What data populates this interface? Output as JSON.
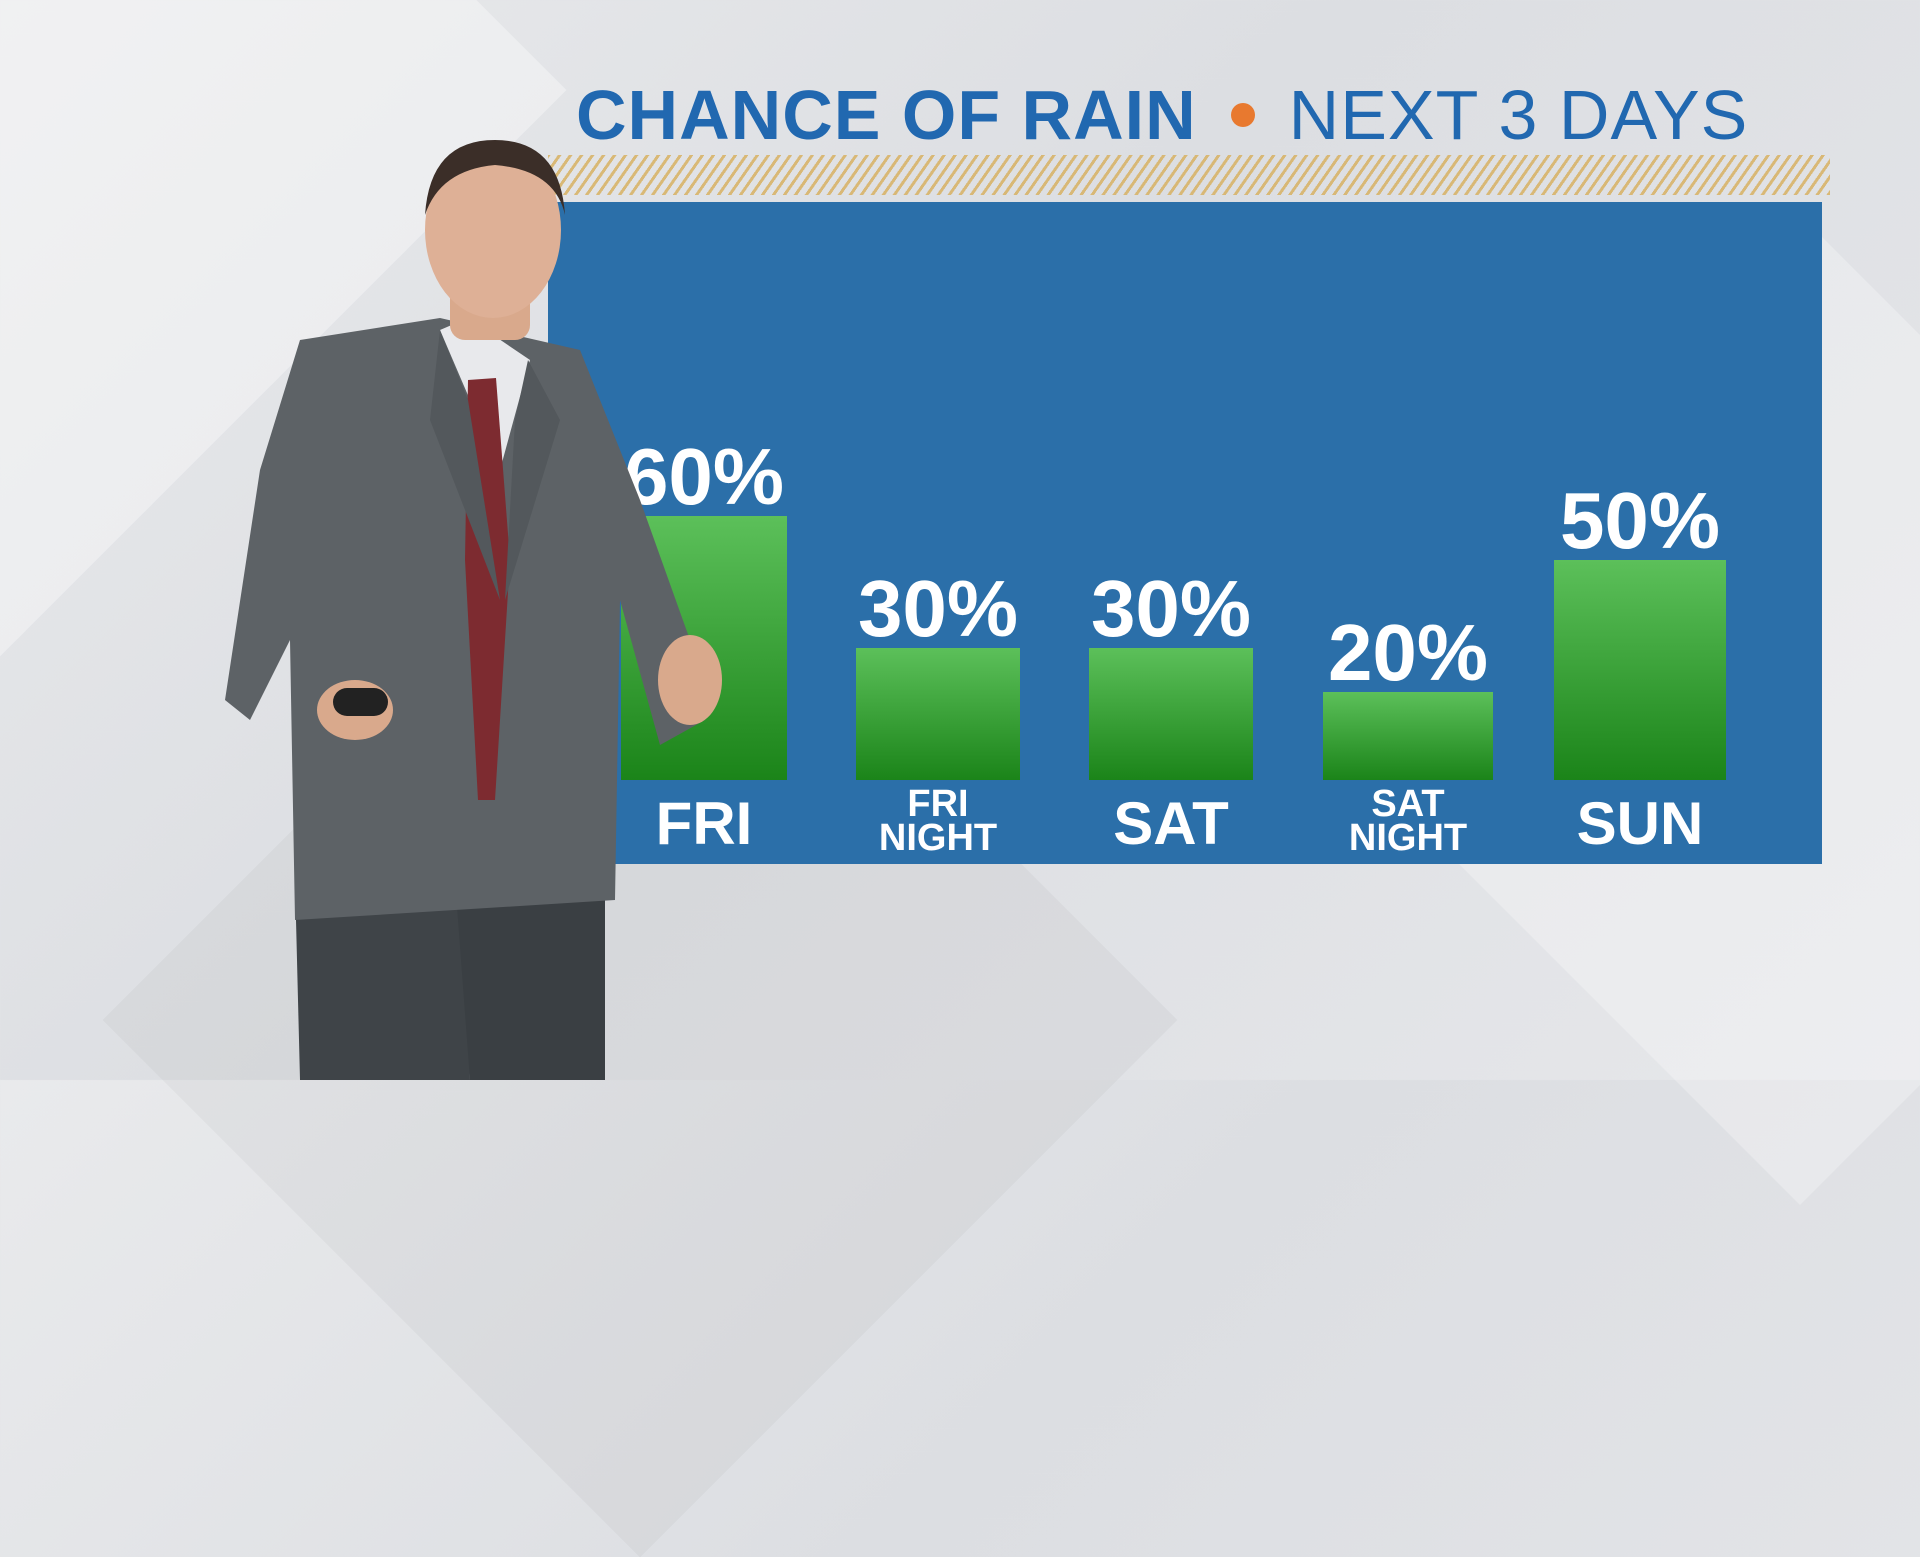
{
  "title": {
    "part1": "CHANCE OF RAIN",
    "part2": "NEXT 3 DAYS"
  },
  "colors": {
    "title_blue": "#2168b0",
    "panel_blue": "#2b6fa9",
    "bar_green_top": "#5cc05a",
    "bar_green_bottom": "#1b8419",
    "dot_orange": "#e8792f",
    "label_white": "#ffffff"
  },
  "chart_data": {
    "type": "bar",
    "categories": [
      "FRI",
      "FRI NIGHT",
      "SAT",
      "SAT NIGHT",
      "SUN"
    ],
    "category_lines": [
      [
        "FRI"
      ],
      [
        "FRI",
        "NIGHT"
      ],
      [
        "SAT"
      ],
      [
        "SAT",
        "NIGHT"
      ],
      [
        "SUN"
      ]
    ],
    "values": [
      60,
      30,
      30,
      20,
      50
    ],
    "data_labels": [
      "60%",
      "30%",
      "30%",
      "20%",
      "50%"
    ],
    "ylim": [
      0,
      100
    ],
    "grid": false
  }
}
